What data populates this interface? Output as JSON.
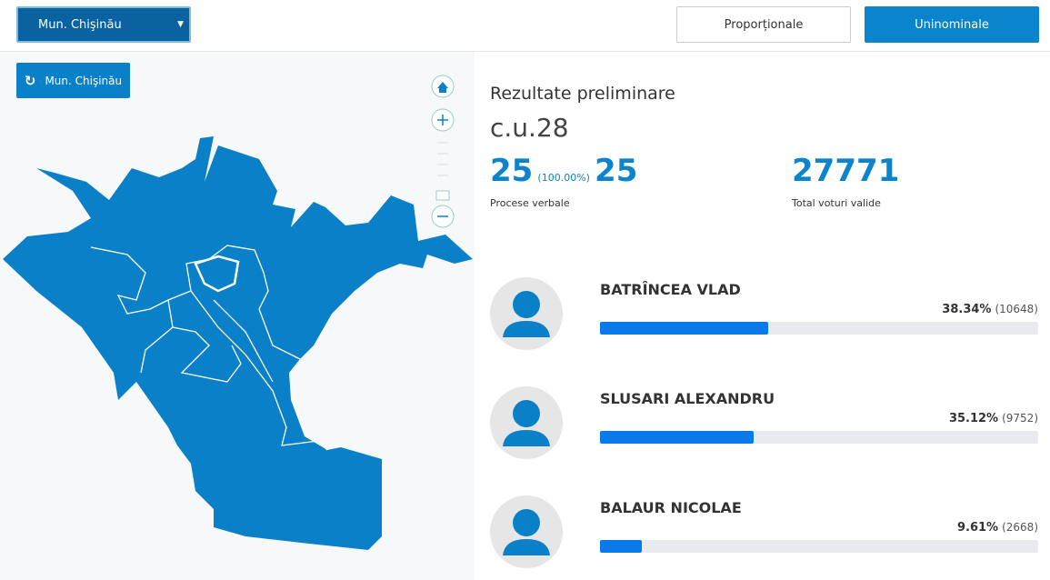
{
  "header": {
    "region_select": "Mun. Chişinău",
    "buttons": [
      "Proporționale",
      "Uninominale"
    ]
  },
  "map": {
    "refresh_button": "Mun. Chişinău"
  },
  "results": {
    "title": "Rezultate preliminare",
    "district": "c.u.28",
    "processed": "25",
    "processed_percent": "(100.00%)",
    "total_processes": "25",
    "processed_label": "Procese verbale",
    "valid_votes": "27771",
    "valid_votes_label": "Total voturi valide",
    "candidates": [
      {
        "name": "BATRÎNCEA VLAD",
        "percent": {
          "value": 38.34,
          "label": "38.34%"
        },
        "votes_label": "(10648)"
      },
      {
        "name": "SLUSARI ALEXANDRU",
        "percent": {
          "value": 35.12,
          "label": "35.12%"
        },
        "votes_label": "(9752)"
      },
      {
        "name": "BALAUR NICOLAE",
        "percent": {
          "value": 9.61,
          "label": "9.61%"
        },
        "votes_label": "(2668)"
      }
    ]
  }
}
